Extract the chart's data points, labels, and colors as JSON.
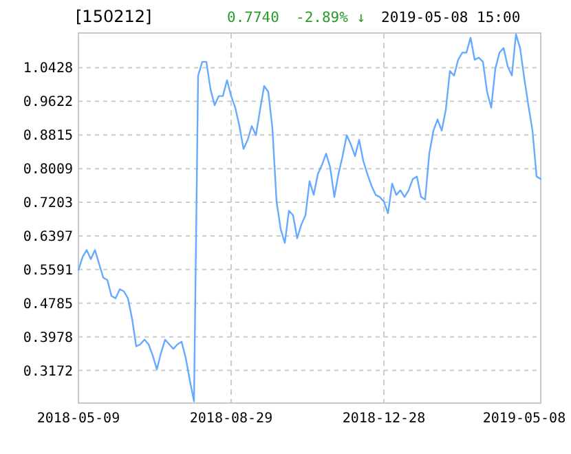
{
  "chart_data": {
    "type": "line",
    "title": "[150212]",
    "annotations": [
      "0.7740",
      "-2.89% ↓",
      "2019-05-08 15:00"
    ],
    "categories": [
      "2018-05-09",
      null,
      null,
      null,
      null,
      null,
      null,
      null,
      null,
      null,
      null,
      null,
      null,
      null,
      null,
      null,
      null,
      null,
      null,
      null,
      null,
      null,
      null,
      null,
      null,
      null,
      null,
      null,
      null,
      null,
      null,
      null,
      null,
      null,
      null,
      null,
      null,
      "2018-08-29",
      null,
      null,
      null,
      null,
      null,
      null,
      null,
      null,
      null,
      null,
      null,
      null,
      null,
      null,
      null,
      null,
      null,
      null,
      null,
      null,
      null,
      null,
      null,
      null,
      null,
      null,
      null,
      null,
      null,
      null,
      null,
      null,
      null,
      null,
      null,
      null,
      "2018-12-28",
      null,
      null,
      null,
      null,
      null,
      null,
      null,
      null,
      null,
      null,
      null,
      null,
      null,
      null,
      null,
      null,
      null,
      null,
      null,
      null,
      null,
      null,
      null,
      null,
      null,
      null,
      null,
      null,
      null,
      null,
      null,
      null,
      null,
      "2019-05-08",
      null,
      null,
      null,
      null
    ],
    "series": [
      {
        "color": "#66aaff",
        "values": [
          0.558,
          0.589,
          0.606,
          0.584,
          0.606,
          0.573,
          0.54,
          0.534,
          0.496,
          0.49,
          0.512,
          0.507,
          0.49,
          0.441,
          0.375,
          0.38,
          0.391,
          0.38,
          0.353,
          0.32,
          0.359,
          0.391,
          0.38,
          0.369,
          0.38,
          0.386,
          0.347,
          0.293,
          0.243,
          1.024,
          1.057,
          1.057,
          0.991,
          0.953,
          0.975,
          0.975,
          1.013,
          0.975,
          0.947,
          0.903,
          0.848,
          0.87,
          0.903,
          0.881,
          0.942,
          0.999,
          0.985,
          0.897,
          0.722,
          0.656,
          0.623,
          0.7,
          0.689,
          0.634,
          0.667,
          0.689,
          0.771,
          0.738,
          0.788,
          0.81,
          0.837,
          0.804,
          0.733,
          0.788,
          0.831,
          0.881,
          0.859,
          0.831,
          0.87,
          0.82,
          0.788,
          0.76,
          0.738,
          0.733,
          0.722,
          0.694,
          0.765,
          0.738,
          0.749,
          0.733,
          0.749,
          0.776,
          0.782,
          0.733,
          0.727,
          0.837,
          0.892,
          0.919,
          0.892,
          0.942,
          1.035,
          1.024,
          1.062,
          1.079,
          1.079,
          1.115,
          1.062,
          1.067,
          1.057,
          0.985,
          0.947,
          1.04,
          1.079,
          1.09,
          1.046,
          1.024,
          1.123,
          1.09,
          1.018,
          0.953,
          0.892,
          0.782,
          0.776
        ]
      }
    ],
    "ylim": [
      0.239,
      1.126
    ],
    "yticks": [
      1.0428,
      0.9622,
      0.8815,
      0.8009,
      0.7203,
      0.6397,
      0.5591,
      0.4785,
      0.3978,
      0.3172
    ],
    "grid": true
  }
}
